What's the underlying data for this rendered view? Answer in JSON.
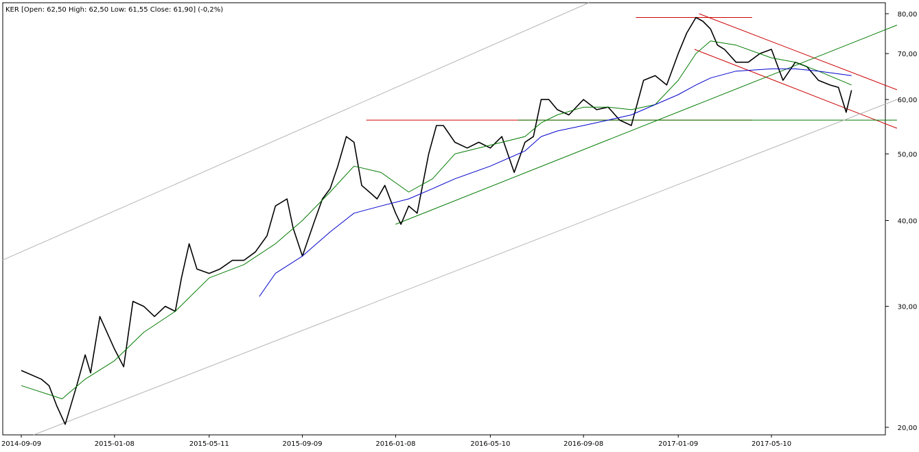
{
  "header": {
    "ohlc_text": "KER [Open: 62,50  High: 62,50  Low: 61,55  Close: 61,90] (-0,2%)"
  },
  "chart_data": {
    "type": "line",
    "title": "",
    "xlabel": "",
    "ylabel": "",
    "y_scale": "log",
    "ylim": [
      19.5,
      83
    ],
    "grid": false,
    "x_ticks": [
      "2014-09-09",
      "2015-01-08",
      "2015-05-11",
      "2015-09-09",
      "2016-01-08",
      "2016-05-10",
      "2016-09-08",
      "2017-01-09",
      "2017-05-10"
    ],
    "y_ticks": [
      {
        "value": 20,
        "label": "20,00"
      },
      {
        "value": 30,
        "label": "30,00"
      },
      {
        "value": 40,
        "label": "40,00"
      },
      {
        "value": 50,
        "label": "50,00"
      },
      {
        "value": 60,
        "label": "60,00"
      },
      {
        "value": 70,
        "label": "70,00"
      },
      {
        "value": 80,
        "label": "80,00"
      }
    ],
    "series": [
      {
        "name": "",
        "color": "#000000",
        "x": [
          "2014-09-09",
          "2014-10-05",
          "2014-10-15",
          "2014-10-25",
          "2014-11-05",
          "2014-11-20",
          "2014-12-01",
          "2014-12-08",
          "2014-12-20",
          "2015-01-08",
          "2015-01-20",
          "2015-02-01",
          "2015-02-15",
          "2015-03-01",
          "2015-03-15",
          "2015-03-28",
          "2015-04-05",
          "2015-04-15",
          "2015-04-25",
          "2015-05-11",
          "2015-05-25",
          "2015-06-10",
          "2015-06-25",
          "2015-07-10",
          "2015-07-25",
          "2015-08-05",
          "2015-08-20",
          "2015-08-28",
          "2015-09-09",
          "2015-09-25",
          "2015-10-05",
          "2015-10-15",
          "2015-10-25",
          "2015-11-05",
          "2015-11-15",
          "2015-11-25",
          "2015-12-05",
          "2015-12-15",
          "2015-12-25",
          "2016-01-08",
          "2016-01-15",
          "2016-01-25",
          "2016-02-05",
          "2016-02-20",
          "2016-03-01",
          "2016-03-10",
          "2016-03-25",
          "2016-04-10",
          "2016-04-25",
          "2016-05-10",
          "2016-05-25",
          "2016-06-10",
          "2016-06-24",
          "2016-07-05",
          "2016-07-15",
          "2016-07-25",
          "2016-08-05",
          "2016-08-20",
          "2016-09-08",
          "2016-09-25",
          "2016-10-10",
          "2016-10-25",
          "2016-11-09",
          "2016-11-25",
          "2016-12-10",
          "2016-12-25",
          "2017-01-09",
          "2017-01-20",
          "2017-02-01",
          "2017-02-10",
          "2017-02-20",
          "2017-03-01",
          "2017-03-10",
          "2017-03-25",
          "2017-04-10",
          "2017-04-25",
          "2017-05-10",
          "2017-05-25",
          "2017-06-10",
          "2017-06-25",
          "2017-07-10",
          "2017-07-25",
          "2017-08-05",
          "2017-08-15",
          "2017-08-22"
        ],
        "values": [
          24.2,
          23.5,
          23.0,
          21.5,
          20.2,
          23.0,
          25.5,
          24.0,
          29.0,
          26.0,
          24.5,
          30.5,
          30.0,
          29.0,
          30.0,
          29.5,
          33.0,
          37.0,
          34.0,
          33.5,
          34.0,
          35.0,
          35.0,
          36.0,
          38.0,
          42.0,
          43.0,
          39.0,
          35.5,
          40.0,
          43.0,
          44.5,
          48.0,
          53.0,
          52.0,
          45.0,
          44.0,
          43.0,
          45.0,
          41.0,
          39.5,
          42.0,
          41.0,
          50.0,
          55.0,
          55.0,
          52.0,
          51.0,
          52.0,
          51.0,
          53.0,
          47.0,
          52.0,
          53.0,
          60.0,
          60.0,
          58.0,
          57.0,
          60.0,
          58.0,
          58.5,
          56.0,
          55.0,
          64.0,
          65.0,
          63.0,
          70.0,
          75.0,
          79.0,
          78.0,
          76.0,
          72.0,
          71.0,
          68.0,
          68.0,
          70.0,
          71.0,
          64.0,
          68.0,
          67.0,
          64.0,
          63.0,
          62.5,
          57.5,
          61.9
        ]
      },
      {
        "name": "",
        "color": "#007a00",
        "x": [
          "2014-09-09",
          "2014-11-01",
          "2014-12-01",
          "2015-01-08",
          "2015-02-15",
          "2015-03-28",
          "2015-05-11",
          "2015-06-25",
          "2015-08-05",
          "2015-09-09",
          "2015-10-15",
          "2015-11-15",
          "2015-12-20",
          "2016-01-25",
          "2016-02-25",
          "2016-03-25",
          "2016-05-10",
          "2016-06-24",
          "2016-07-15",
          "2016-08-05",
          "2016-09-08",
          "2016-10-10",
          "2016-11-09",
          "2016-12-10",
          "2017-01-09",
          "2017-02-01",
          "2017-02-20",
          "2017-03-25",
          "2017-05-10",
          "2017-06-10",
          "2017-07-10",
          "2017-08-22"
        ],
        "values": [
          23.0,
          22.0,
          23.5,
          25.0,
          27.5,
          29.5,
          33.0,
          34.5,
          37.0,
          40.0,
          44.0,
          48.0,
          47.0,
          44.0,
          46.0,
          50.0,
          51.5,
          53.0,
          55.5,
          57.0,
          58.5,
          58.5,
          58.0,
          59.0,
          64.0,
          70.0,
          73.0,
          72.0,
          69.0,
          68.0,
          66.0,
          63.0
        ]
      },
      {
        "name": "",
        "color": "#0000cc",
        "x": [
          "2015-07-15",
          "2015-08-05",
          "2015-09-09",
          "2015-10-15",
          "2015-11-15",
          "2015-12-20",
          "2016-01-25",
          "2016-02-25",
          "2016-03-25",
          "2016-05-10",
          "2016-06-24",
          "2016-07-15",
          "2016-08-05",
          "2016-09-08",
          "2016-10-10",
          "2016-11-09",
          "2016-12-10",
          "2017-01-09",
          "2017-02-01",
          "2017-02-20",
          "2017-03-25",
          "2017-05-10",
          "2017-06-10",
          "2017-07-10",
          "2017-08-22"
        ],
        "values": [
          31.0,
          33.5,
          35.5,
          38.5,
          41.0,
          42.0,
          43.0,
          44.5,
          46.0,
          48.0,
          50.5,
          53.0,
          54.0,
          55.0,
          56.0,
          57.0,
          59.0,
          61.0,
          63.0,
          64.5,
          66.0,
          66.5,
          66.5,
          66.0,
          65.0
        ]
      }
    ],
    "lines": [
      {
        "color": "#cc0000",
        "x": [
          "2015-12-01",
          "2017-04-15"
        ],
        "values": [
          56.0,
          56.0
        ]
      },
      {
        "color": "#cc0000",
        "x": [
          "2016-11-15",
          "2017-04-15"
        ],
        "values": [
          79.0,
          79.0
        ]
      },
      {
        "color": "#cc0000",
        "x": [
          "2017-02-05",
          "2017-10-20"
        ],
        "values": [
          80.0,
          62.0
        ]
      },
      {
        "color": "#cc0000",
        "x": [
          "2017-01-30",
          "2017-10-20"
        ],
        "values": [
          71.0,
          54.5
        ]
      },
      {
        "color": "#007a00",
        "x": [
          "2016-06-15",
          "2017-10-20"
        ],
        "values": [
          56.0,
          56.0
        ]
      },
      {
        "color": "#007a00",
        "x": [
          "2016-01-08",
          "2017-10-20"
        ],
        "values": [
          39.5,
          77.0
        ]
      },
      {
        "color": "#b4b4b4",
        "x": [
          "2014-08-15",
          "2016-09-15"
        ],
        "values": [
          35.0,
          83.0
        ]
      },
      {
        "color": "#b4b4b4",
        "x": [
          "2014-09-25",
          "2017-10-20"
        ],
        "values": [
          19.5,
          60.0
        ]
      }
    ]
  }
}
